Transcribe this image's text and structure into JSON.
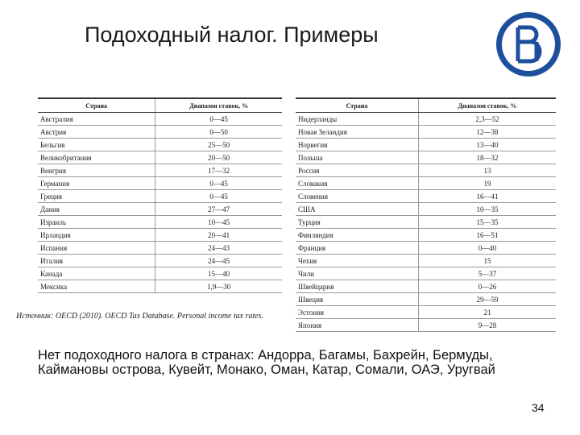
{
  "title": "Подоходный налог. Примеры",
  "left_table": {
    "headers": [
      "Страна",
      "Диапазон ставок, %"
    ],
    "rows": [
      [
        "Австралия",
        "0—45"
      ],
      [
        "Австрия",
        "0—50"
      ],
      [
        "Бельгия",
        "25—50"
      ],
      [
        "Великобритания",
        "20—50"
      ],
      [
        "Венгрия",
        "17—32"
      ],
      [
        "Германия",
        "0—45"
      ],
      [
        "Греция",
        "0—45"
      ],
      [
        "Дания",
        "27—47"
      ],
      [
        "Израиль",
        "10—45"
      ],
      [
        "Ирландия",
        "20—41"
      ],
      [
        "Испания",
        "24—43"
      ],
      [
        "Италия",
        "24—45"
      ],
      [
        "Канада",
        "15—40"
      ],
      [
        "Мексика",
        "1,9—30"
      ]
    ]
  },
  "source": "Источник: OECD (2010). OECD Tax Database. Personal income tax rates.",
  "right_table": {
    "headers": [
      "Страна",
      "Диапазон ставок, %"
    ],
    "rows": [
      [
        "Нидерланды",
        "2,3—52"
      ],
      [
        "Новая Зеландия",
        "12—38"
      ],
      [
        "Норвегия",
        "13—40"
      ],
      [
        "Польша",
        "18—32"
      ],
      [
        "Россия",
        "13"
      ],
      [
        "Словакия",
        "19"
      ],
      [
        "Словения",
        "16—41"
      ],
      [
        "США",
        "10—35"
      ],
      [
        "Турция",
        "15—35"
      ],
      [
        "Финляндия",
        "16—51"
      ],
      [
        "Франция",
        "0—40"
      ],
      [
        "Чехия",
        "15"
      ],
      [
        "Чили",
        "5—37"
      ],
      [
        "Швейцария",
        "0—26"
      ],
      [
        "Швеция",
        "29—59"
      ],
      [
        "Эстония",
        "21"
      ],
      [
        "Япония",
        "9—28"
      ]
    ]
  },
  "note": "Нет подоходного налога в странах: Андорра, Багамы, Бахрейн, Бермуды, Каймановы острова, Кувейт, Монако, Оман, Катар, Сомали, ОАЭ, Уругвай",
  "page_number": "34"
}
